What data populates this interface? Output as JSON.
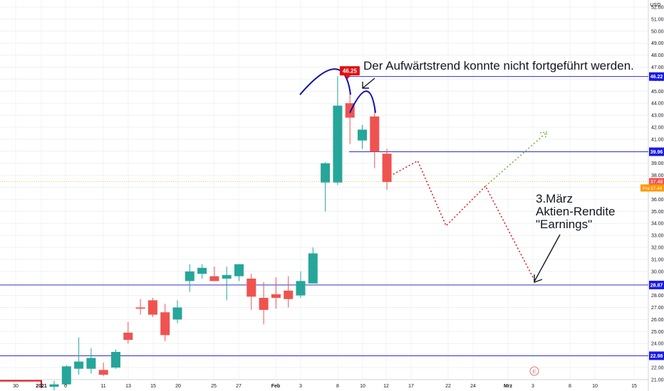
{
  "chart_data": {
    "type": "candlestick",
    "currency": "USD",
    "ylim": [
      20.6,
      53.0
    ],
    "y_ticks": [
      21,
      22,
      23,
      24,
      25,
      26,
      27,
      28,
      29,
      30,
      31,
      32,
      33,
      34,
      35,
      36,
      37,
      38,
      39,
      40,
      41,
      42,
      43,
      44,
      45,
      46,
      47,
      48,
      49,
      50,
      51,
      52
    ],
    "x_labels": [
      "30",
      "2021",
      "6",
      "11",
      "13",
      "15",
      "20",
      "25",
      "27",
      "Feb",
      "3",
      "8",
      "10",
      "12",
      "17",
      "22",
      "24",
      "Mrz",
      "3",
      "8",
      "10",
      "15"
    ],
    "candles": [
      {
        "idx": 0,
        "o": 20.4,
        "h": 20.9,
        "l": 20.1,
        "c": 20.6
      },
      {
        "idx": 1,
        "o": 20.6,
        "h": 22.2,
        "l": 20.5,
        "c": 22.1
      },
      {
        "idx": 2,
        "o": 21.9,
        "h": 24.5,
        "l": 21.4,
        "c": 22.5
      },
      {
        "idx": 3,
        "o": 21.9,
        "h": 23.6,
        "l": 21.5,
        "c": 22.8
      },
      {
        "idx": 4,
        "o": 21.8,
        "h": 22.4,
        "l": 21.3,
        "c": 21.4
      },
      {
        "idx": 5,
        "o": 22.0,
        "h": 23.5,
        "l": 21.9,
        "c": 23.3
      },
      {
        "idx": 6,
        "o": 24.9,
        "h": 25.8,
        "l": 24.0,
        "c": 24.3
      },
      {
        "idx": 7,
        "o": 27.0,
        "h": 27.7,
        "l": 26.4,
        "c": 26.9
      },
      {
        "idx": 8,
        "o": 27.6,
        "h": 27.8,
        "l": 26.2,
        "c": 26.4
      },
      {
        "idx": 9,
        "o": 26.6,
        "h": 27.3,
        "l": 24.2,
        "c": 24.7
      },
      {
        "idx": 10,
        "o": 26.0,
        "h": 27.6,
        "l": 25.7,
        "c": 27.0
      },
      {
        "idx": 11,
        "o": 29.2,
        "h": 30.6,
        "l": 28.3,
        "c": 30.0
      },
      {
        "idx": 12,
        "o": 29.8,
        "h": 30.6,
        "l": 29.4,
        "c": 30.3
      },
      {
        "idx": 13,
        "o": 29.6,
        "h": 30.4,
        "l": 29.2,
        "c": 29.2
      },
      {
        "idx": 14,
        "o": 29.4,
        "h": 30.4,
        "l": 27.6,
        "c": 29.7
      },
      {
        "idx": 15,
        "o": 29.6,
        "h": 30.6,
        "l": 29.2,
        "c": 30.6
      },
      {
        "idx": 16,
        "o": 29.4,
        "h": 29.8,
        "l": 26.8,
        "c": 27.9
      },
      {
        "idx": 17,
        "o": 27.8,
        "h": 29.1,
        "l": 25.6,
        "c": 26.8
      },
      {
        "idx": 18,
        "o": 28.1,
        "h": 29.5,
        "l": 26.9,
        "c": 27.8
      },
      {
        "idx": 19,
        "o": 28.4,
        "h": 29.6,
        "l": 27.0,
        "c": 27.7
      },
      {
        "idx": 20,
        "o": 28.0,
        "h": 30.0,
        "l": 27.8,
        "c": 29.2
      },
      {
        "idx": 21,
        "o": 29.0,
        "h": 32.0,
        "l": 29.0,
        "c": 31.5
      },
      {
        "idx": 22,
        "o": 37.4,
        "h": 39.1,
        "l": 35.0,
        "c": 39.0
      },
      {
        "idx": 23,
        "o": 37.4,
        "h": 46.25,
        "l": 37.2,
        "c": 43.8
      },
      {
        "idx": 24,
        "o": 44.0,
        "h": 45.2,
        "l": 40.6,
        "c": 42.8
      },
      {
        "idx": 25,
        "o": 40.9,
        "h": 42.2,
        "l": 40.2,
        "c": 41.8
      },
      {
        "idx": 26,
        "o": 42.9,
        "h": 43.8,
        "l": 38.6,
        "c": 39.96
      },
      {
        "idx": 27,
        "o": 39.8,
        "h": 40.2,
        "l": 36.8,
        "c": 37.44
      }
    ],
    "horizontal_lines": [
      {
        "value": 46.22,
        "label": "46.22"
      },
      {
        "value": 39.96,
        "label": "39.96"
      },
      {
        "value": 28.87,
        "label": "28.87"
      },
      {
        "value": 22.98,
        "label": "22.98"
      }
    ],
    "high_marker": {
      "value": 46.25,
      "label": "46.25"
    },
    "last_price": {
      "value": 37.48,
      "label": "37.48",
      "pre_label": "Pre",
      "pre_value": "37.44"
    },
    "projection_red": [
      {
        "idx": 27,
        "y": 37.8
      },
      {
        "idx": 29.5,
        "y": 39.2
      },
      {
        "idx": 31.8,
        "y": 33.8
      },
      {
        "idx": 35.0,
        "y": 37.1
      },
      {
        "idx": 39.0,
        "y": 29.2
      }
    ],
    "projection_green": [
      {
        "idx": 35.0,
        "y": 37.1
      },
      {
        "idx": 40.0,
        "y": 41.6
      }
    ],
    "earnings_marker": "E",
    "annotations": {
      "top_text": "Der Aufwärtstrend konnte nicht fortgeführt werden.",
      "earnings_line1": "3.März",
      "earnings_line2": "Aktien-Rendite",
      "earnings_line3": "\"Earnings\""
    },
    "colors": {
      "up": "#26a69a",
      "down": "#ef5350",
      "hline": "#3333cc",
      "arc": "#1010b0",
      "projection_red": "#e02020",
      "projection_green": "#7cb342",
      "label_bg": "#1a1ae6",
      "last_bg": "#ff9800",
      "high_bg": "#e01010"
    }
  }
}
